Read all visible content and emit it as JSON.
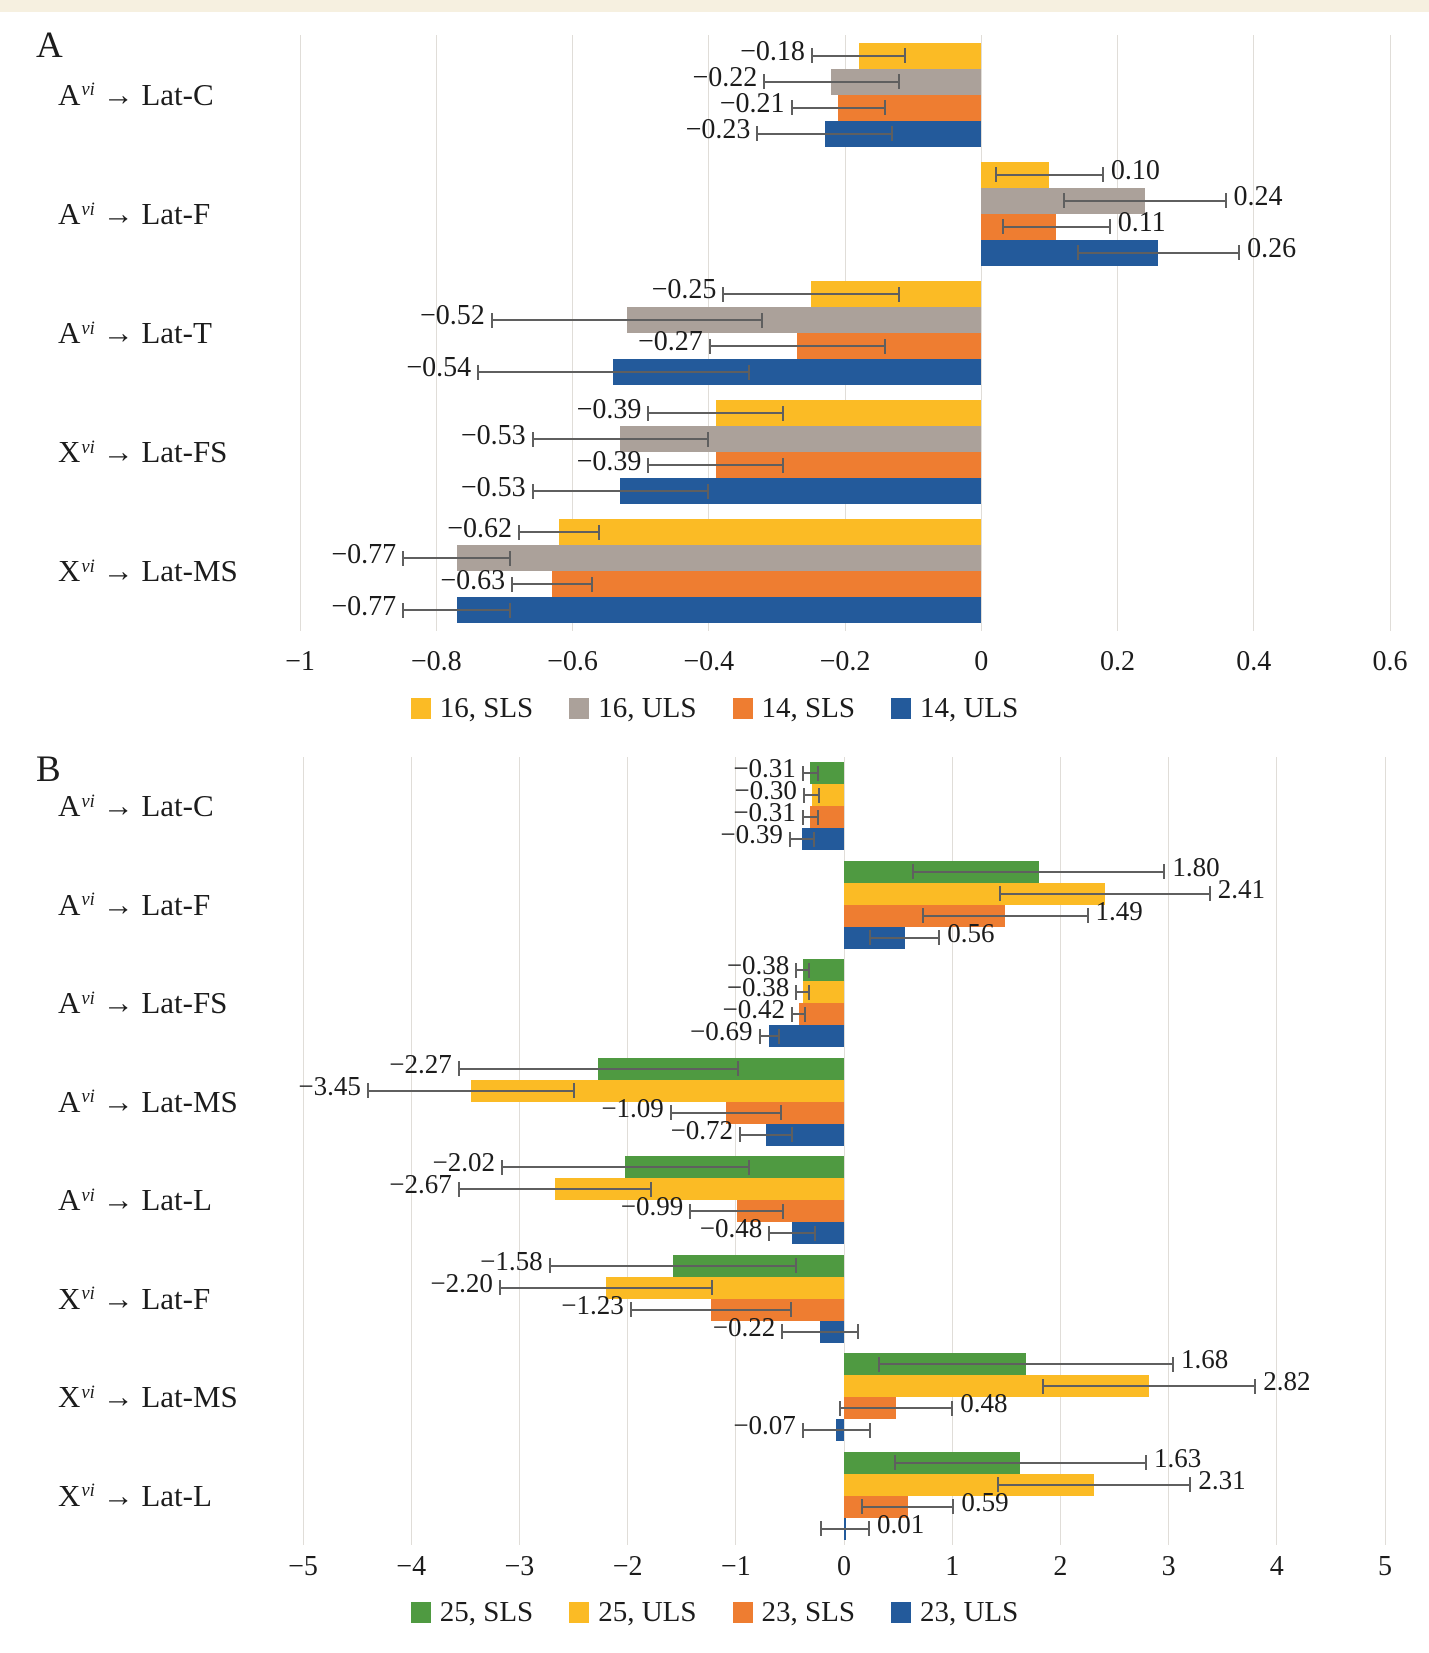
{
  "page": {
    "top_strip_color": "#F6F0E0",
    "background": "#FFFFFF"
  },
  "chart_data": [
    {
      "panel_label": "A",
      "type": "bar",
      "orientation": "horizontal",
      "xlim": [
        -1,
        0.6
      ],
      "grid": true,
      "grid_color": "#E0DDD8",
      "error_bar_color": "#5F5F5F",
      "legend_position": "bottom",
      "value_label_format": "0.00",
      "x_ticks": [
        {
          "v": -1,
          "label": "−1"
        },
        {
          "v": -0.8,
          "label": "−0.8"
        },
        {
          "v": -0.6,
          "label": "−0.6"
        },
        {
          "v": -0.4,
          "label": "−0.4"
        },
        {
          "v": -0.2,
          "label": "−0.2"
        },
        {
          "v": 0,
          "label": "0"
        },
        {
          "v": 0.2,
          "label": "0.2"
        },
        {
          "v": 0.4,
          "label": "0.4"
        },
        {
          "v": 0.6,
          "label": "0.6"
        }
      ],
      "series": [
        {
          "name": "16, SLS",
          "color": "#FBBB25"
        },
        {
          "name": "16, ULS",
          "color": "#ABA19A"
        },
        {
          "name": "14, SLS",
          "color": "#EE7D31"
        },
        {
          "name": "14, ULS",
          "color": "#235A9B"
        }
      ],
      "categories": [
        {
          "label": {
            "base": "A",
            "sup": "vi",
            "arrow": "→",
            "target": "Lat-C"
          },
          "values": [
            -0.18,
            -0.22,
            -0.21,
            -0.23
          ],
          "errors": [
            0.07,
            0.1,
            0.07,
            0.1
          ]
        },
        {
          "label": {
            "base": "A",
            "sup": "vi",
            "arrow": "→",
            "target": "Lat-F"
          },
          "values": [
            0.1,
            0.24,
            0.11,
            0.26
          ],
          "errors": [
            0.08,
            0.12,
            0.08,
            0.12
          ]
        },
        {
          "label": {
            "base": "A",
            "sup": "vi",
            "arrow": "→",
            "target": "Lat-T"
          },
          "values": [
            -0.25,
            -0.52,
            -0.27,
            -0.54
          ],
          "errors": [
            0.13,
            0.2,
            0.13,
            0.2
          ]
        },
        {
          "label": {
            "base": "X",
            "sup": "vi",
            "arrow": "→",
            "target": "Lat-FS"
          },
          "values": [
            -0.39,
            -0.53,
            -0.39,
            -0.53
          ],
          "errors": [
            0.1,
            0.13,
            0.1,
            0.13
          ]
        },
        {
          "label": {
            "base": "X",
            "sup": "vi",
            "arrow": "→",
            "target": "Lat-MS"
          },
          "values": [
            -0.62,
            -0.77,
            -0.63,
            -0.77
          ],
          "errors": [
            0.06,
            0.08,
            0.06,
            0.08
          ]
        }
      ]
    },
    {
      "panel_label": "B",
      "type": "bar",
      "orientation": "horizontal",
      "xlim": [
        -5,
        5
      ],
      "grid": true,
      "grid_color": "#E0DDD8",
      "error_bar_color": "#5F5F5F",
      "legend_position": "bottom",
      "value_label_format": "0.00",
      "x_ticks": [
        {
          "v": -5,
          "label": "−5"
        },
        {
          "v": -4,
          "label": "−4"
        },
        {
          "v": -3,
          "label": "−3"
        },
        {
          "v": -2,
          "label": "−2"
        },
        {
          "v": -1,
          "label": "−1"
        },
        {
          "v": 0,
          "label": "0"
        },
        {
          "v": 1,
          "label": "1"
        },
        {
          "v": 2,
          "label": "2"
        },
        {
          "v": 3,
          "label": "3"
        },
        {
          "v": 4,
          "label": "4"
        },
        {
          "v": 5,
          "label": "5"
        }
      ],
      "series": [
        {
          "name": "25, SLS",
          "color": "#4F9A41"
        },
        {
          "name": "25, ULS",
          "color": "#FBBB25"
        },
        {
          "name": "23, SLS",
          "color": "#EE7D31"
        },
        {
          "name": "23, ULS",
          "color": "#235A9B"
        }
      ],
      "categories": [
        {
          "label": {
            "base": "A",
            "sup": "vi",
            "arrow": "→",
            "target": "Lat-C"
          },
          "values": [
            -0.31,
            -0.3,
            -0.31,
            -0.39
          ],
          "errors": [
            0.08,
            0.08,
            0.08,
            0.12
          ]
        },
        {
          "label": {
            "base": "A",
            "sup": "vi",
            "arrow": "→",
            "target": "Lat-F"
          },
          "values": [
            1.8,
            2.41,
            1.49,
            0.56
          ],
          "errors": [
            1.17,
            0.98,
            0.77,
            0.33
          ]
        },
        {
          "label": {
            "base": "A",
            "sup": "vi",
            "arrow": "→",
            "target": "Lat-FS"
          },
          "values": [
            -0.38,
            -0.38,
            -0.42,
            -0.69
          ],
          "errors": [
            0.07,
            0.07,
            0.07,
            0.1
          ]
        },
        {
          "label": {
            "base": "A",
            "sup": "vi",
            "arrow": "→",
            "target": "Lat-MS"
          },
          "values": [
            -2.27,
            -3.45,
            -1.09,
            -0.72
          ],
          "errors": [
            1.3,
            0.96,
            0.52,
            0.25
          ]
        },
        {
          "label": {
            "base": "A",
            "sup": "vi",
            "arrow": "→",
            "target": "Lat-L"
          },
          "values": [
            -2.02,
            -2.67,
            -0.99,
            -0.48
          ],
          "errors": [
            1.15,
            0.9,
            0.44,
            0.22
          ]
        },
        {
          "label": {
            "base": "X",
            "sup": "vi",
            "arrow": "→",
            "target": "Lat-F"
          },
          "values": [
            -1.58,
            -2.2,
            -1.23,
            -0.22
          ],
          "errors": [
            1.15,
            0.99,
            0.75,
            0.36
          ]
        },
        {
          "label": {
            "base": "X",
            "sup": "vi",
            "arrow": "→",
            "target": "Lat-MS"
          },
          "values": [
            1.68,
            2.82,
            0.48,
            -0.07
          ],
          "errors": [
            1.37,
            0.99,
            0.53,
            0.32
          ]
        },
        {
          "label": {
            "base": "X",
            "sup": "vi",
            "arrow": "→",
            "target": "Lat-L"
          },
          "values": [
            1.63,
            2.31,
            0.59,
            0.01
          ],
          "errors": [
            1.17,
            0.9,
            0.43,
            0.23
          ]
        }
      ]
    }
  ]
}
